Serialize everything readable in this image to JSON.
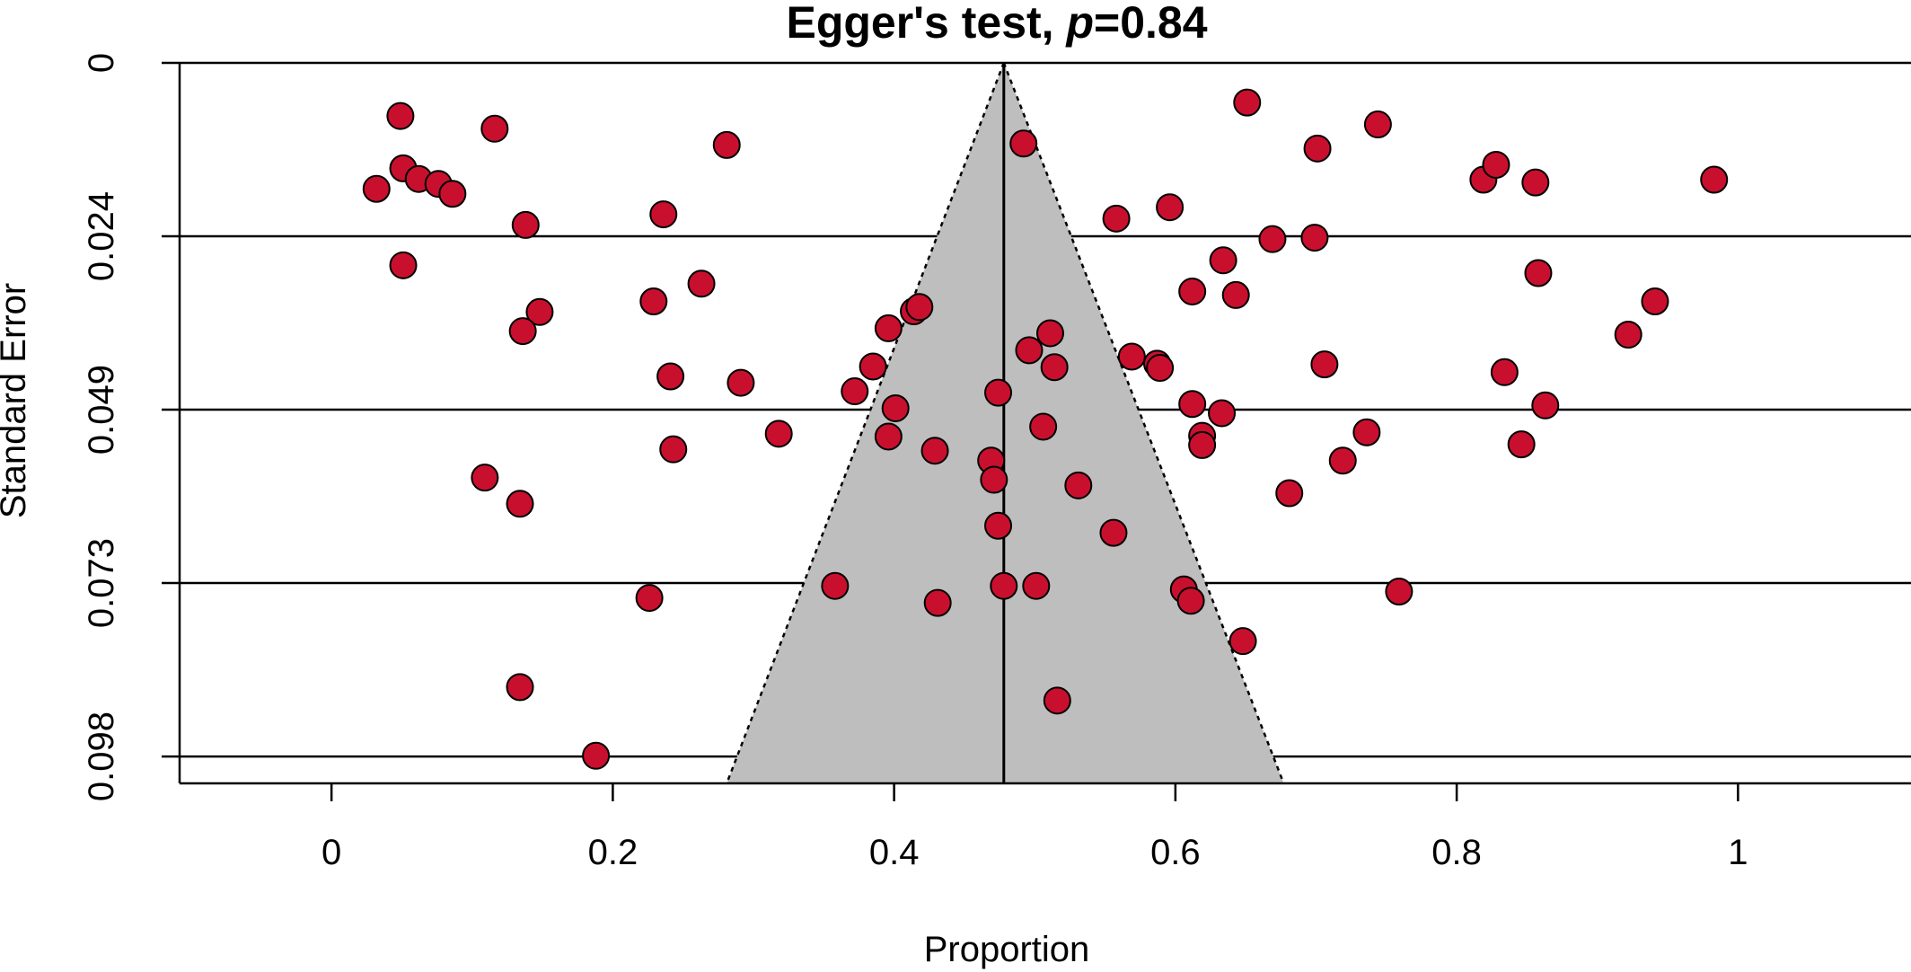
{
  "chart_data": {
    "type": "scatter",
    "title": "Egger's test, ",
    "title_p_symbol": "p",
    "title_p_value": "=0.84",
    "xlabel": "Proportion",
    "ylabel": "Standard Error",
    "xlim": [
      -0.108,
      1.123
    ],
    "ylim": [
      0.1018,
      0
    ],
    "y_inverted": true,
    "x_ticks": [
      0,
      0.2,
      0.4,
      0.6,
      0.8,
      1
    ],
    "x_tick_labels": [
      "0",
      "0.2",
      "0.4",
      "0.6",
      "0.8",
      "1"
    ],
    "y_ticks": [
      0,
      0.0245,
      0.049,
      0.0735,
      0.098
    ],
    "y_tick_labels": [
      "0",
      "0.024",
      "0.049",
      "0.073",
      "0.098"
    ],
    "grid": "horizontal",
    "pooled_estimate": 0.478,
    "funnel": {
      "apex_se": 0,
      "se_max": 0.1018,
      "left_x": 0.281,
      "right_x": 0.677
    },
    "marker_color": "#C8102E",
    "funnel_fill": "#BEBEBE",
    "points": [
      [
        0.032,
        0.0178
      ],
      [
        0.049,
        0.0075
      ],
      [
        0.051,
        0.0149
      ],
      [
        0.062,
        0.0164
      ],
      [
        0.076,
        0.0171
      ],
      [
        0.086,
        0.0185
      ],
      [
        0.051,
        0.0286
      ],
      [
        0.116,
        0.0093
      ],
      [
        0.138,
        0.0229
      ],
      [
        0.148,
        0.0352
      ],
      [
        0.136,
        0.0379
      ],
      [
        0.109,
        0.0586
      ],
      [
        0.134,
        0.0623
      ],
      [
        0.134,
        0.0882
      ],
      [
        0.188,
        0.0979
      ],
      [
        0.226,
        0.0756
      ],
      [
        0.229,
        0.0337
      ],
      [
        0.236,
        0.0214
      ],
      [
        0.241,
        0.0443
      ],
      [
        0.243,
        0.0546
      ],
      [
        0.263,
        0.0312
      ],
      [
        0.281,
        0.0116
      ],
      [
        0.291,
        0.0452
      ],
      [
        0.318,
        0.0524
      ],
      [
        0.358,
        0.0739
      ],
      [
        0.372,
        0.0464
      ],
      [
        0.385,
        0.0429
      ],
      [
        0.396,
        0.0375
      ],
      [
        0.396,
        0.0528
      ],
      [
        0.401,
        0.0488
      ],
      [
        0.414,
        0.0351
      ],
      [
        0.418,
        0.0345
      ],
      [
        0.429,
        0.0548
      ],
      [
        0.431,
        0.0763
      ],
      [
        0.469,
        0.0562
      ],
      [
        0.471,
        0.0589
      ],
      [
        0.474,
        0.0654
      ],
      [
        0.474,
        0.0466
      ],
      [
        0.478,
        0.0739
      ],
      [
        0.492,
        0.0114
      ],
      [
        0.496,
        0.0406
      ],
      [
        0.501,
        0.0739
      ],
      [
        0.506,
        0.0514
      ],
      [
        0.511,
        0.0382
      ],
      [
        0.514,
        0.043
      ],
      [
        0.516,
        0.0901
      ],
      [
        0.531,
        0.0597
      ],
      [
        0.556,
        0.0664
      ],
      [
        0.558,
        0.022
      ],
      [
        0.569,
        0.0415
      ],
      [
        0.587,
        0.0425
      ],
      [
        0.589,
        0.0431
      ],
      [
        0.596,
        0.0204
      ],
      [
        0.606,
        0.0744
      ],
      [
        0.611,
        0.076
      ],
      [
        0.612,
        0.0323
      ],
      [
        0.612,
        0.0482
      ],
      [
        0.619,
        0.0527
      ],
      [
        0.619,
        0.054
      ],
      [
        0.633,
        0.0495
      ],
      [
        0.634,
        0.0279
      ],
      [
        0.643,
        0.0328
      ],
      [
        0.648,
        0.0817
      ],
      [
        0.651,
        0.0056
      ],
      [
        0.669,
        0.0249
      ],
      [
        0.681,
        0.0608
      ],
      [
        0.699,
        0.0247
      ],
      [
        0.701,
        0.0121
      ],
      [
        0.706,
        0.0426
      ],
      [
        0.719,
        0.0562
      ],
      [
        0.736,
        0.0522
      ],
      [
        0.744,
        0.0087
      ],
      [
        0.759,
        0.0747
      ],
      [
        0.819,
        0.0165
      ],
      [
        0.828,
        0.0144
      ],
      [
        0.834,
        0.0437
      ],
      [
        0.846,
        0.0539
      ],
      [
        0.856,
        0.0169
      ],
      [
        0.858,
        0.0297
      ],
      [
        0.863,
        0.0484
      ],
      [
        0.922,
        0.0384
      ],
      [
        0.941,
        0.0337
      ],
      [
        0.983,
        0.0165
      ]
    ]
  }
}
